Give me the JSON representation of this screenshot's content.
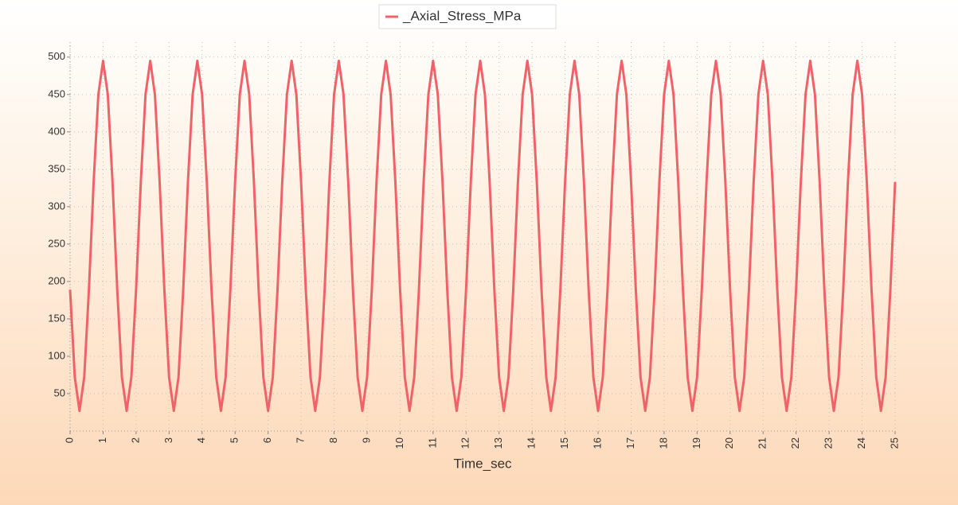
{
  "chart_data": {
    "type": "line",
    "legend": "_Axial_Stress_MPa",
    "xlabel": "Time_sec",
    "x": [
      0,
      0.143,
      0.286,
      0.429,
      0.571,
      0.714,
      0.857,
      1,
      1.143,
      1.286,
      1.429,
      1.571,
      1.714,
      1.857,
      2,
      2.143,
      2.286,
      2.429,
      2.571,
      2.714,
      2.857,
      3,
      3.143,
      3.286,
      3.429,
      3.571,
      3.714,
      3.857,
      4,
      4.143,
      4.286,
      4.429,
      4.571,
      4.714,
      4.857,
      5,
      5.143,
      5.286,
      5.429,
      5.571,
      5.714,
      5.857,
      6,
      6.143,
      6.286,
      6.429,
      6.571,
      6.714,
      6.857,
      7,
      7.143,
      7.286,
      7.429,
      7.571,
      7.714,
      7.857,
      8,
      8.143,
      8.286,
      8.429,
      8.571,
      8.714,
      8.857,
      9,
      9.143,
      9.286,
      9.429,
      9.571,
      9.714,
      9.857,
      10,
      10.143,
      10.286,
      10.429,
      10.571,
      10.714,
      10.857,
      11,
      11.143,
      11.286,
      11.429,
      11.571,
      11.714,
      11.857,
      12,
      12.143,
      12.286,
      12.429,
      12.571,
      12.714,
      12.857,
      13,
      13.143,
      13.286,
      13.429,
      13.571,
      13.714,
      13.857,
      14,
      14.143,
      14.286,
      14.429,
      14.571,
      14.714,
      14.857,
      15,
      15.143,
      15.286,
      15.429,
      15.571,
      15.714,
      15.857,
      16,
      16.143,
      16.286,
      16.429,
      16.571,
      16.714,
      16.857,
      17,
      17.143,
      17.286,
      17.429,
      17.571,
      17.714,
      17.857,
      18,
      18.143,
      18.286,
      18.429,
      18.571,
      18.714,
      18.857,
      19,
      19.143,
      19.286,
      19.429,
      19.571,
      19.714,
      19.857,
      20,
      20.143,
      20.286,
      20.429,
      20.571,
      20.714,
      20.857,
      21,
      21.143,
      21.286,
      21.429,
      21.571,
      21.714,
      21.857,
      22,
      22.143,
      22.286,
      22.429,
      22.571,
      22.714,
      22.857,
      23,
      23.143,
      23.286,
      23.429,
      23.571,
      23.714,
      23.857,
      24,
      24.143,
      24.286,
      24.429,
      24.571,
      24.714,
      24.857,
      25
    ],
    "series": [
      {
        "name": "_Axial_Stress_MPa",
        "color": "#f0626a",
        "values": [
          189,
          72,
          27,
          72,
          189,
          333,
          450,
          495,
          450,
          333,
          189,
          72,
          27,
          72,
          189,
          333,
          450,
          495,
          450,
          333,
          189,
          72,
          27,
          72,
          189,
          333,
          450,
          495,
          450,
          333,
          189,
          72,
          27,
          72,
          189,
          333,
          450,
          495,
          450,
          333,
          189,
          72,
          27,
          72,
          189,
          333,
          450,
          495,
          450,
          333,
          189,
          72,
          27,
          72,
          189,
          333,
          450,
          495,
          450,
          333,
          189,
          72,
          27,
          72,
          189,
          333,
          450,
          495,
          450,
          333,
          189,
          72,
          27,
          72,
          189,
          333,
          450,
          495,
          450,
          333,
          189,
          72,
          27,
          72,
          189,
          333,
          450,
          495,
          450,
          333,
          189,
          72,
          27,
          72,
          189,
          333,
          450,
          495,
          450,
          333,
          189,
          72,
          27,
          72,
          189,
          333,
          450,
          495,
          450,
          333,
          189,
          72,
          27,
          72,
          189,
          333,
          450,
          495,
          450,
          333,
          189,
          72,
          27,
          72,
          189,
          333,
          450,
          495,
          450,
          333,
          189,
          72,
          27,
          72,
          189,
          333,
          450,
          495,
          450,
          333,
          189,
          72,
          27,
          72,
          189,
          333,
          450,
          495,
          450,
          333,
          189,
          72,
          27,
          72,
          189,
          333,
          450,
          495,
          450,
          333,
          189,
          72,
          27,
          72,
          189,
          333,
          450,
          495,
          450,
          333,
          189,
          72,
          27,
          72,
          189,
          333
        ]
      }
    ],
    "xlim": [
      0,
      25
    ],
    "xticks": [
      0,
      1,
      2,
      3,
      4,
      5,
      6,
      7,
      8,
      9,
      10,
      11,
      12,
      13,
      14,
      15,
      16,
      17,
      18,
      19,
      20,
      21,
      22,
      23,
      24,
      25
    ],
    "ylim": [
      0,
      520
    ],
    "yticks": [
      50,
      100,
      150,
      200,
      250,
      300,
      350,
      400,
      450,
      500
    ],
    "grid": true
  }
}
